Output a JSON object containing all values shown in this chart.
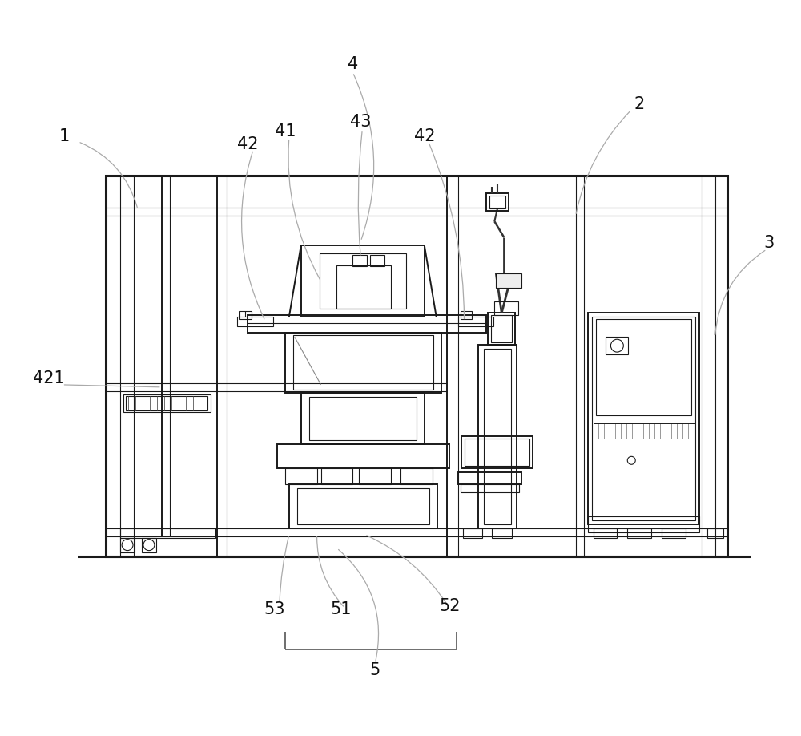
{
  "bg_color": "#ffffff",
  "line_color": "#1a1a1a",
  "ann_color": "#aaaaaa",
  "label_color": "#111111",
  "fig_width": 10.0,
  "fig_height": 9.18,
  "lw_thick": 2.2,
  "lw_main": 1.4,
  "lw_thin": 0.8,
  "lw_ann": 0.9
}
